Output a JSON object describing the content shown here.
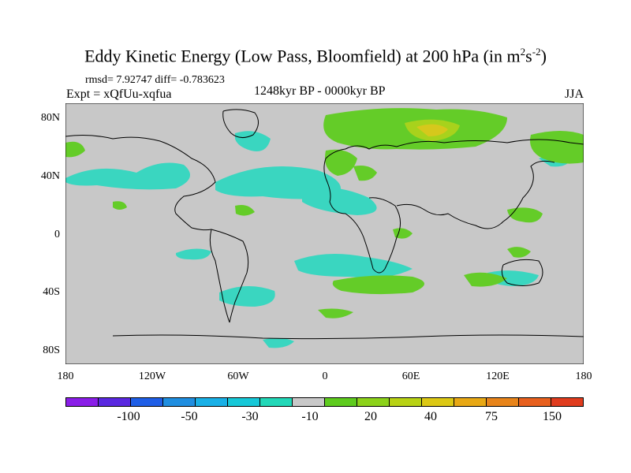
{
  "title": "Eddy Kinetic Energy (Low Pass, Bloomfield) at 200 hPa (in m",
  "units": {
    "sup1": "2",
    "mid": "s",
    "sup2": "-2",
    "close": ")"
  },
  "stats": "rmsd= 7.92747 diff= -0.783623",
  "expt": "Expt = xQfUu-xqfua",
  "period": "1248kyr BP - 0000kyr BP",
  "season": "JJA",
  "lat_labels": [
    "80N",
    "40N",
    "0",
    "40S",
    "80S"
  ],
  "lon_labels": [
    "180",
    "120W",
    "60W",
    "0",
    "60E",
    "120E",
    "180"
  ],
  "colorbar": {
    "colors": [
      "#8a1ee8",
      "#5a28e0",
      "#1f5ee6",
      "#1f8ee0",
      "#19b0e6",
      "#16c8d8",
      "#22d8b8",
      "#c8c8c8",
      "#5ecb1e",
      "#8cd21a",
      "#b8d214",
      "#dcc814",
      "#e8a814",
      "#e8841a",
      "#e8601e",
      "#e03c1e"
    ],
    "labels": [
      "-100",
      "-50",
      "-30",
      "-10",
      "20",
      "40",
      "75",
      "150"
    ]
  },
  "palette": {
    "ocean_land": "#c8c8c8",
    "neg": "#3ad6c0",
    "pos": "#64cc28",
    "pos2": "#9cd21c",
    "pos3": "#d8c81a"
  }
}
